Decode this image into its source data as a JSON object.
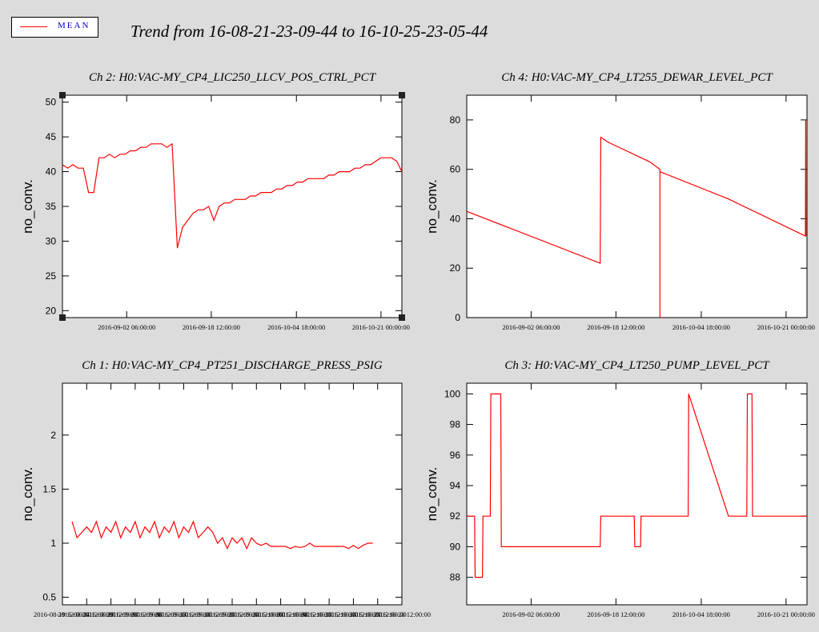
{
  "legend": {
    "label": "MEAN",
    "color": "#ff0000"
  },
  "page_title": "Trend from 16-08-21-23-09-44 to 16-10-25-23-05-44",
  "chart_data": [
    {
      "type": "line",
      "title": "Ch 2: H0:VAC-MY_CP4_LIC250_LLCV_POS_CTRL_PCT",
      "ylabel": "no_conv.",
      "xlabel": "",
      "ylim": [
        19,
        51
      ],
      "yticks": [
        "20",
        "25",
        "30",
        "35",
        "40",
        "45",
        "50"
      ],
      "yticks_values": [
        20,
        25,
        30,
        35,
        40,
        45,
        50
      ],
      "xticks": [
        "2016-09-02 06:00:00",
        "2016-09-18 12:00:00",
        "2016-10-04 18:00:00",
        "2016-10-21 00:00:00"
      ],
      "xticks_values": [
        12.3,
        28.5,
        44.8,
        61.0
      ],
      "xlim": [
        0,
        65
      ],
      "grid": false,
      "selected": true,
      "series": [
        {
          "color": "#ff0000",
          "x": [
            0,
            1,
            2,
            3,
            4,
            5,
            6,
            7,
            8,
            9,
            10,
            11,
            12,
            13,
            14,
            15,
            16,
            17,
            18,
            19,
            20,
            21,
            22,
            23,
            24,
            25,
            26,
            27,
            28,
            29,
            30,
            31,
            32,
            33,
            34,
            35,
            36,
            37,
            38,
            39,
            40,
            41,
            42,
            43,
            44,
            45,
            46,
            47,
            48,
            49,
            50,
            51,
            52,
            53,
            54,
            55,
            56,
            57,
            58,
            59,
            60,
            61,
            62,
            63,
            64,
            65
          ],
          "y": [
            41,
            40.5,
            41,
            40.5,
            40.5,
            37,
            37,
            42,
            42,
            42.5,
            42,
            42.5,
            42.5,
            43,
            43,
            43.5,
            43.5,
            44,
            44,
            44,
            43.5,
            44,
            29,
            32,
            33,
            34,
            34.5,
            34.5,
            35,
            33,
            35,
            35.5,
            35.5,
            36,
            36,
            36,
            36.5,
            36.5,
            37,
            37,
            37,
            37.5,
            37.5,
            38,
            38,
            38.5,
            38.5,
            39,
            39,
            39,
            39,
            39.5,
            39.5,
            40,
            40,
            40,
            40.5,
            40.5,
            41,
            41,
            41.5,
            42,
            42,
            42,
            41.5,
            40
          ]
        }
      ]
    },
    {
      "type": "line",
      "title": "Ch 4: H0:VAC-MY_CP4_LT255_DEWAR_LEVEL_PCT",
      "ylabel": "no_conv.",
      "xlabel": "",
      "ylim": [
        0,
        90
      ],
      "yticks": [
        "0",
        "20",
        "40",
        "60",
        "80"
      ],
      "yticks_values": [
        0,
        20,
        40,
        60,
        80
      ],
      "xticks": [
        "2016-09-02 06:00:00",
        "2016-09-18 12:00:00",
        "2016-10-04 18:00:00",
        "2016-10-21 00:00:00"
      ],
      "xticks_values": [
        12.3,
        28.5,
        44.8,
        61.0
      ],
      "xlim": [
        0,
        65
      ],
      "grid": false,
      "selected": false,
      "series": [
        {
          "color": "#ff0000",
          "x": [
            0,
            25.5,
            25.6,
            27,
            35,
            36.9,
            36.9,
            36.9,
            37,
            50,
            64.7,
            64.75,
            64.8
          ],
          "y": [
            43,
            22,
            73,
            71,
            63,
            60,
            0,
            59,
            59,
            48,
            33,
            80,
            33
          ]
        }
      ]
    },
    {
      "type": "line",
      "title": "Ch 1: H0:VAC-MY_CP4_PT251_DISCHARGE_PRESS_PSIG",
      "ylabel": "no_conv.",
      "xlabel": "",
      "ylim": [
        0.43,
        2.48
      ],
      "yticks": [
        "0.5",
        "1",
        "1.5",
        "2"
      ],
      "yticks_values": [
        0.5,
        1,
        1.5,
        2
      ],
      "xticks": [
        "2016-08-19 12:00:00",
        "2016-08-24 12:00:00",
        "2016-08-29 12:00:00",
        "2016-09-03 12:00:00",
        "2016-09-08 12:00:00",
        "2016-09-13 12:00:00",
        "2016-09-18 12:00:00",
        "2016-09-23 12:00:00",
        "2016-09-28 12:00:00",
        "2016-10-03 12:00:00",
        "2016-10-08 12:00:00",
        "2016-10-13 12:00:00",
        "2016-10-18 12:00:00",
        "2016-10-23 12:00:00",
        "2016-10-28 12:00:00"
      ],
      "xticks_values": [
        0,
        5,
        10,
        15,
        20,
        25,
        30,
        35,
        40,
        45,
        50,
        55,
        60,
        65,
        70
      ],
      "xlim": [
        0,
        70
      ],
      "grid": false,
      "selected": false,
      "series": [
        {
          "color": "#ff0000",
          "x": [
            2,
            3,
            4,
            5,
            6,
            7,
            8,
            9,
            10,
            11,
            12,
            13,
            14,
            15,
            16,
            17,
            18,
            19,
            20,
            21,
            22,
            23,
            24,
            25,
            26,
            27,
            28,
            29,
            30,
            31,
            32,
            33,
            34,
            35,
            36,
            37,
            38,
            39,
            40,
            41,
            42,
            43,
            44,
            45,
            46,
            47,
            48,
            49,
            50,
            51,
            52,
            53,
            54,
            55,
            56,
            57,
            58,
            59,
            60,
            61,
            62,
            63,
            64
          ],
          "y": [
            1.2,
            1.05,
            1.1,
            1.15,
            1.1,
            1.2,
            1.05,
            1.15,
            1.1,
            1.2,
            1.05,
            1.15,
            1.1,
            1.2,
            1.05,
            1.15,
            1.1,
            1.2,
            1.05,
            1.15,
            1.1,
            1.2,
            1.05,
            1.15,
            1.1,
            1.2,
            1.05,
            1.1,
            1.15,
            1.1,
            1.0,
            1.05,
            0.95,
            1.05,
            1.0,
            1.05,
            0.95,
            1.05,
            1.0,
            0.98,
            1.0,
            0.97,
            0.97,
            0.97,
            0.97,
            0.95,
            0.97,
            0.96,
            0.97,
            1.0,
            0.97,
            0.97,
            0.97,
            0.97,
            0.97,
            0.97,
            0.97,
            0.95,
            0.98,
            0.95,
            0.98,
            1.0,
            1.0
          ]
        }
      ]
    },
    {
      "type": "line",
      "title": "Ch 3: H0:VAC-MY_CP4_LT250_PUMP_LEVEL_PCT",
      "ylabel": "no_conv.",
      "xlabel": "",
      "ylim": [
        86.2,
        100.7
      ],
      "yticks": [
        "88",
        "90",
        "92",
        "94",
        "96",
        "98",
        "100"
      ],
      "yticks_values": [
        88,
        90,
        92,
        94,
        96,
        98,
        100
      ],
      "xticks": [
        "2016-09-02 06:00:00",
        "2016-09-18 12:00:00",
        "2016-10-04 18:00:00",
        "2016-10-21 00:00:00"
      ],
      "xticks_values": [
        12.3,
        28.5,
        44.8,
        61.0
      ],
      "xlim": [
        0,
        65
      ],
      "grid": false,
      "selected": false,
      "series": [
        {
          "color": "#ff0000",
          "x": [
            0,
            1.5,
            1.6,
            3,
            3.1,
            4.5,
            4.6,
            6.5,
            6.6,
            12,
            20,
            25.5,
            25.6,
            32,
            32.1,
            33.2,
            33.3,
            34.8,
            34.9,
            40,
            40.1,
            42.3,
            42.4,
            50,
            53.5,
            53.6,
            54.5,
            54.6,
            58,
            65
          ],
          "y": [
            92,
            92,
            88,
            88,
            92,
            92,
            100,
            100,
            90,
            90,
            90,
            90,
            92,
            92,
            90,
            90,
            92,
            92,
            92,
            92,
            92,
            92,
            100,
            92,
            92,
            100,
            100,
            92,
            92,
            92
          ]
        }
      ]
    }
  ]
}
